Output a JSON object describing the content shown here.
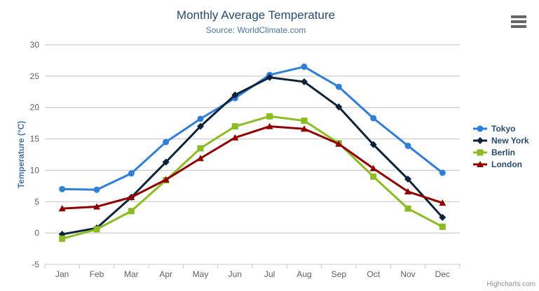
{
  "title": "Monthly Average Temperature",
  "subtitle": "Source: WorldClimate.com",
  "credit": "Highcharts.com",
  "context_menu": {
    "icon": "hamburger-icon"
  },
  "colors": {
    "title_text": "#274b6d",
    "subtitle_text": "#4d759e",
    "yaxis_title_text": "#4572a7",
    "axis_label_text": "#606060",
    "axis_line": "#c0d0e0",
    "gridline": "#c0c0c0",
    "legend_text": "#274b6d",
    "credit_text": "#909090"
  },
  "chart_data": {
    "type": "line",
    "title": "Monthly Average Temperature",
    "subtitle": "Source: WorldClimate.com",
    "xlabel": "",
    "ylabel": "Temperature (°C)",
    "ylim": [
      -5,
      30
    ],
    "ytick_step": 5,
    "grid": true,
    "legend_position": "right",
    "categories": [
      "Jan",
      "Feb",
      "Mar",
      "Apr",
      "May",
      "Jun",
      "Jul",
      "Aug",
      "Sep",
      "Oct",
      "Nov",
      "Dec"
    ],
    "series": [
      {
        "name": "Tokyo",
        "color": "#2f7ed8",
        "marker": "circle",
        "values": [
          7.0,
          6.9,
          9.5,
          14.5,
          18.2,
          21.5,
          25.2,
          26.5,
          23.3,
          18.3,
          13.9,
          9.6
        ]
      },
      {
        "name": "New York",
        "color": "#0d233a",
        "marker": "diamond",
        "values": [
          -0.2,
          0.8,
          5.7,
          11.3,
          17.0,
          22.0,
          24.8,
          24.1,
          20.1,
          14.1,
          8.6,
          2.5
        ]
      },
      {
        "name": "Berlin",
        "color": "#8bbc21",
        "marker": "square",
        "values": [
          -0.9,
          0.6,
          3.5,
          8.4,
          13.5,
          17.0,
          18.6,
          17.9,
          14.3,
          9.0,
          3.9,
          1.0
        ]
      },
      {
        "name": "London",
        "color": "#910000",
        "marker": "triangle",
        "values": [
          3.9,
          4.2,
          5.7,
          8.5,
          11.9,
          15.2,
          17.0,
          16.6,
          14.2,
          10.3,
          6.6,
          4.8
        ]
      }
    ]
  }
}
